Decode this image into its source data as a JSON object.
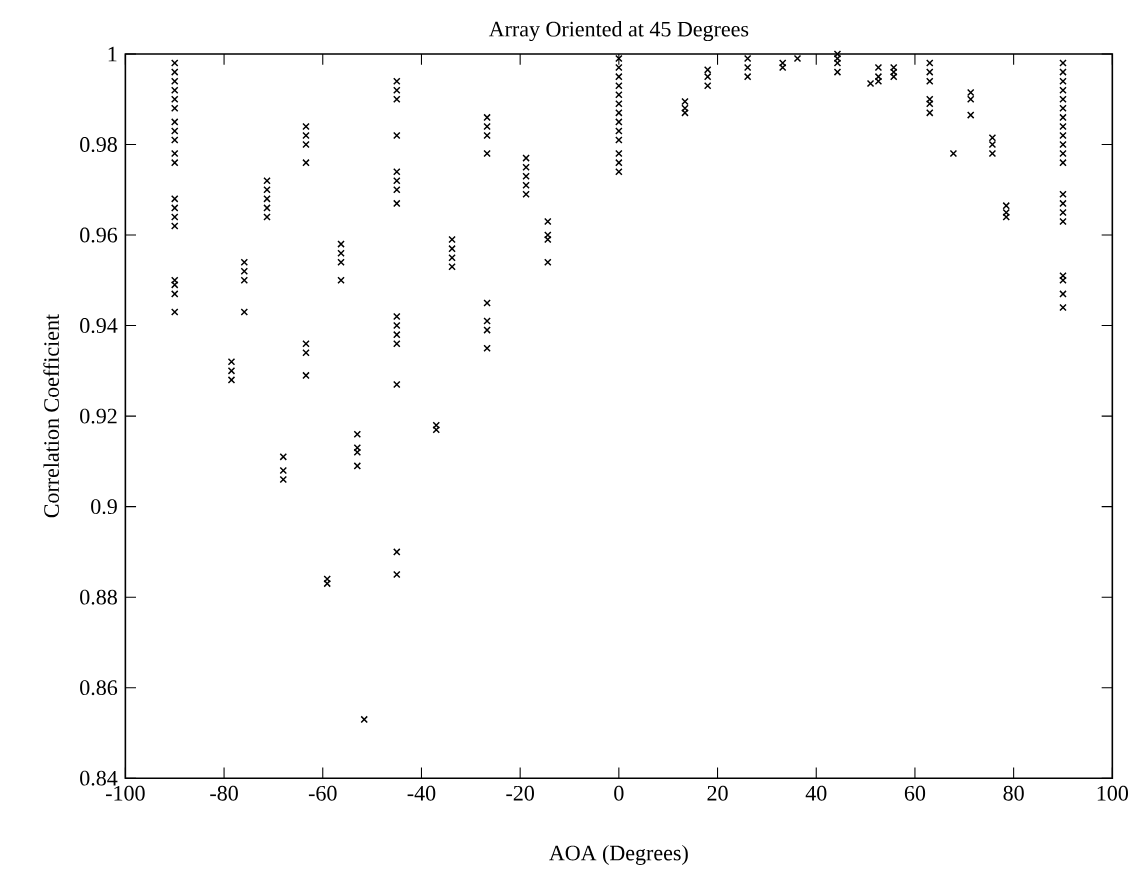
{
  "chart_data": {
    "type": "scatter",
    "title": "Array Oriented at 45 Degrees",
    "xlabel": "AOA (Degrees)",
    "ylabel": "Correlation Coefficient",
    "xlim": [
      -100,
      100
    ],
    "ylim": [
      0.84,
      1
    ],
    "xticks": [
      -100,
      -80,
      -60,
      -40,
      -20,
      0,
      20,
      40,
      60,
      80,
      100
    ],
    "yticks": [
      0.84,
      0.86,
      0.88,
      0.9,
      0.92,
      0.94,
      0.96,
      0.98,
      1
    ],
    "grid": false,
    "marker": "cross",
    "series": [
      {
        "color": "#000000",
        "x": [
          -90,
          -90,
          -90,
          -90,
          -90,
          -90,
          -90,
          -90,
          -90,
          -90,
          -90,
          -90,
          -90,
          -90,
          -90,
          -90,
          -90,
          -90,
          -90,
          -78.5,
          -78.5,
          -78.5,
          -75.9,
          -75.9,
          -75.9,
          -75.9,
          -71.3,
          -71.3,
          -71.3,
          -71.3,
          -71.3,
          -68,
          -68,
          -68,
          -63.4,
          -63.4,
          -63.4,
          -63.4,
          -63.4,
          -63.4,
          -63.4,
          -59.1,
          -59.1,
          -56.3,
          -56.3,
          -56.3,
          -56.3,
          -53,
          -53,
          -53,
          -53,
          -51.6,
          -45,
          -45,
          -45,
          -45,
          -45,
          -45,
          -45,
          -45,
          -45,
          -45,
          -45,
          -45,
          -45,
          -45,
          -45,
          -37,
          -37,
          -33.8,
          -33.8,
          -33.8,
          -33.8,
          -26.7,
          -26.7,
          -26.7,
          -26.7,
          -26.7,
          -26.7,
          -26.7,
          -26.7,
          -18.8,
          -18.8,
          -18.8,
          -18.8,
          -18.8,
          -14.4,
          -14.4,
          -14.4,
          -14.4,
          0,
          0,
          0,
          0,
          0,
          0,
          0,
          0,
          0,
          0,
          0,
          0,
          0,
          13.4,
          13.4,
          13.4,
          18,
          18,
          18,
          26.1,
          26.1,
          26.1,
          33.2,
          33.2,
          36.2,
          44.3,
          44.3,
          44.3,
          44.3,
          51,
          52.6,
          52.6,
          52.6,
          55.7,
          55.7,
          55.7,
          63,
          63,
          63,
          63,
          63,
          63,
          67.8,
          71.3,
          71.3,
          71.3,
          75.7,
          75.7,
          75.7,
          78.5,
          78.5,
          78.5,
          90,
          90,
          90,
          90,
          90,
          90,
          90,
          90,
          90,
          90,
          90,
          90,
          90,
          90,
          90,
          90,
          90,
          90,
          90,
          90
        ],
        "values": [
          0.998,
          0.996,
          0.994,
          0.992,
          0.99,
          0.988,
          0.985,
          0.983,
          0.981,
          0.978,
          0.976,
          0.968,
          0.966,
          0.964,
          0.962,
          0.95,
          0.949,
          0.947,
          0.943,
          0.932,
          0.93,
          0.928,
          0.954,
          0.952,
          0.95,
          0.943,
          0.972,
          0.97,
          0.968,
          0.966,
          0.964,
          0.911,
          0.908,
          0.906,
          0.984,
          0.982,
          0.98,
          0.976,
          0.936,
          0.934,
          0.929,
          0.884,
          0.883,
          0.958,
          0.956,
          0.954,
          0.95,
          0.916,
          0.913,
          0.912,
          0.909,
          0.853,
          0.994,
          0.992,
          0.99,
          0.982,
          0.974,
          0.972,
          0.97,
          0.967,
          0.942,
          0.94,
          0.938,
          0.936,
          0.927,
          0.89,
          0.885,
          0.918,
          0.917,
          0.959,
          0.957,
          0.955,
          0.953,
          0.986,
          0.984,
          0.982,
          0.978,
          0.945,
          0.941,
          0.939,
          0.935,
          0.977,
          0.975,
          0.973,
          0.971,
          0.969,
          0.963,
          0.96,
          0.959,
          0.954,
          0.999,
          0.997,
          0.995,
          0.993,
          0.991,
          0.989,
          0.987,
          0.985,
          0.983,
          0.981,
          0.978,
          0.976,
          0.974,
          0.9895,
          0.988,
          0.987,
          0.9965,
          0.995,
          0.993,
          0.999,
          0.997,
          0.995,
          0.998,
          0.997,
          0.999,
          1,
          0.999,
          0.998,
          0.996,
          0.9935,
          0.997,
          0.995,
          0.994,
          0.997,
          0.996,
          0.995,
          0.998,
          0.996,
          0.994,
          0.99,
          0.989,
          0.987,
          0.978,
          0.9915,
          0.99,
          0.9865,
          0.9815,
          0.98,
          0.978,
          0.9665,
          0.965,
          0.964,
          0.998,
          0.996,
          0.994,
          0.992,
          0.99,
          0.988,
          0.986,
          0.984,
          0.982,
          0.98,
          0.978,
          0.976,
          0.969,
          0.967,
          0.965,
          0.963,
          0.951,
          0.95,
          0.947,
          0.944
        ]
      }
    ]
  }
}
